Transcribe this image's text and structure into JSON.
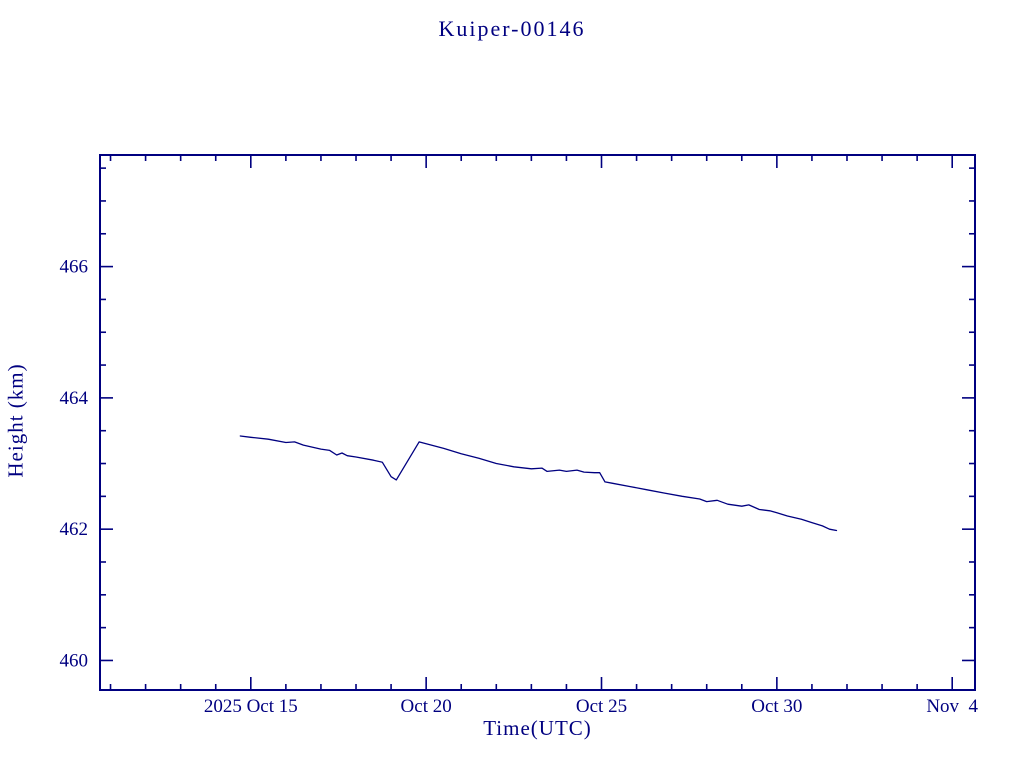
{
  "page": {
    "background_color": "#ffffff"
  },
  "chart_data": {
    "type": "line",
    "title": "Kuiper-00146",
    "xlabel": "Time(UTC)",
    "ylabel": "Height (km)",
    "accent_color": "#000080",
    "background_color": "#ffffff",
    "grid": false,
    "legend": "none",
    "x_domain": [
      10.7,
      35.65
    ],
    "y_domain": [
      459.55,
      467.7
    ],
    "x_minor_step": 1,
    "y_minor_step": 0.5,
    "x_major_ticks": [
      {
        "value": 15,
        "label": "2025 Oct 15"
      },
      {
        "value": 20,
        "label": "Oct 20"
      },
      {
        "value": 25,
        "label": "Oct 25"
      },
      {
        "value": 30,
        "label": "Oct 30"
      },
      {
        "value": 35,
        "label": "Nov  4"
      }
    ],
    "y_major_ticks": [
      460,
      462,
      464,
      466
    ],
    "series": [
      {
        "name": "height_km",
        "x": [
          14.7,
          15.0,
          15.5,
          16.0,
          16.25,
          16.5,
          17.0,
          17.25,
          17.45,
          17.6,
          17.75,
          18.0,
          18.5,
          18.75,
          19.0,
          19.15,
          19.8,
          20.0,
          20.5,
          21.0,
          21.5,
          22.0,
          22.5,
          23.0,
          23.3,
          23.45,
          23.8,
          24.0,
          24.3,
          24.5,
          24.8,
          24.95,
          25.1,
          25.3,
          25.8,
          26.3,
          26.8,
          27.3,
          27.8,
          28.0,
          28.3,
          28.6,
          29.0,
          29.2,
          29.5,
          29.8,
          30.0,
          30.3,
          30.7,
          31.0,
          31.3,
          31.5,
          31.7
        ],
        "y": [
          463.42,
          463.4,
          463.37,
          463.32,
          463.33,
          463.28,
          463.22,
          463.2,
          463.13,
          463.16,
          463.12,
          463.1,
          463.05,
          463.02,
          462.8,
          462.75,
          463.33,
          463.3,
          463.23,
          463.15,
          463.08,
          463.0,
          462.95,
          462.92,
          462.93,
          462.88,
          462.9,
          462.88,
          462.9,
          462.87,
          462.86,
          462.86,
          462.72,
          462.7,
          462.65,
          462.6,
          462.55,
          462.5,
          462.46,
          462.42,
          462.44,
          462.38,
          462.35,
          462.37,
          462.3,
          462.28,
          462.25,
          462.2,
          462.15,
          462.1,
          462.05,
          462.0,
          461.98
        ]
      }
    ]
  }
}
